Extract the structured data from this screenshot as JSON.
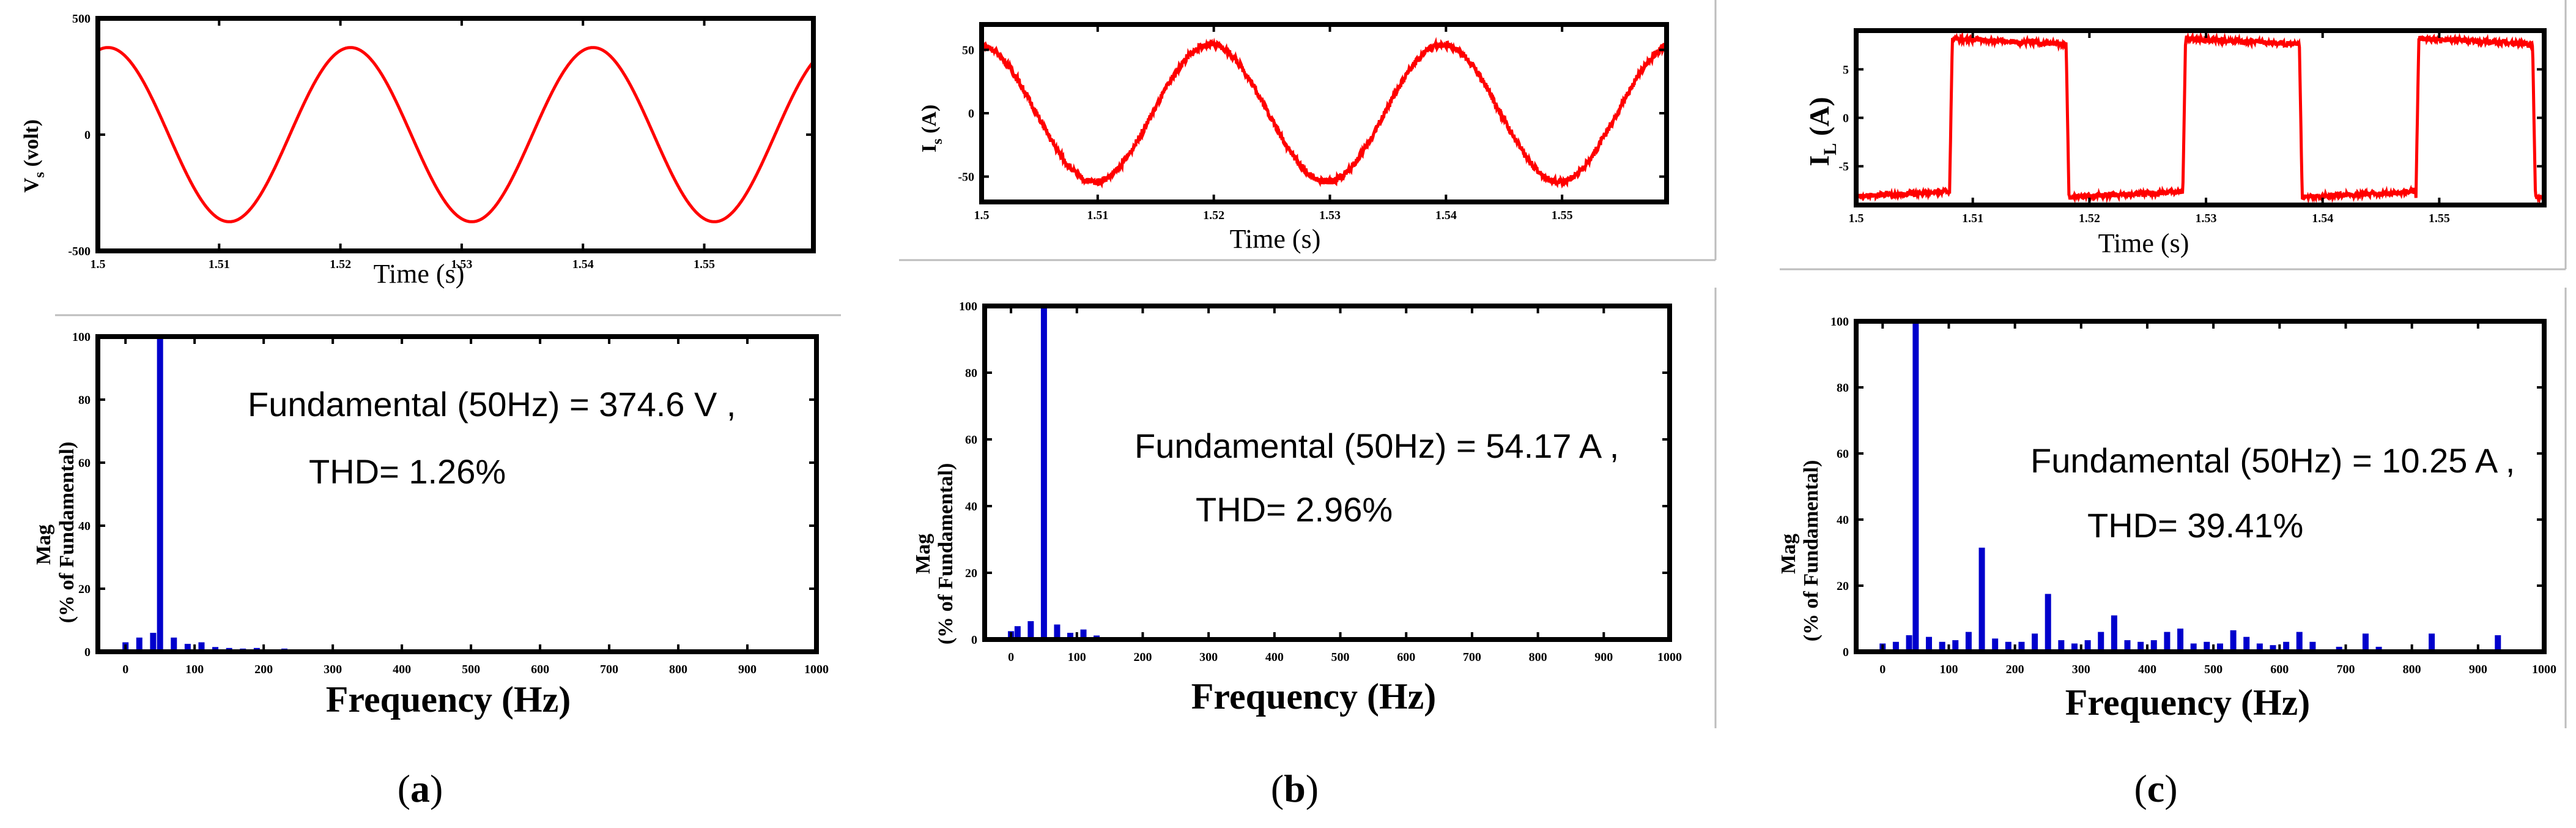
{
  "colors": {
    "waveform": "#ff0000",
    "spectrum_bar": "#0000cc",
    "axis": "#000000",
    "separator": "#bdbdbd"
  },
  "panels": [
    {
      "label": "(a)",
      "label_open": "(",
      "label_letter": "a",
      "label_close": ")"
    },
    {
      "label": "(b)",
      "label_open": "(",
      "label_letter": "b",
      "label_close": ")"
    },
    {
      "label": "(c)",
      "label_open": "(",
      "label_letter": "c",
      "label_close": ")"
    }
  ],
  "chart_data": [
    {
      "id": "a-time",
      "type": "line",
      "title": "",
      "xlabel": "Time (s)",
      "ylabel_main": "V",
      "ylabel_sub": "s",
      "ylabel_rest": " (volt)",
      "xlim": [
        1.5,
        1.559
      ],
      "ylim": [
        -500,
        500
      ],
      "xticks": [
        1.5,
        1.51,
        1.52,
        1.53,
        1.54,
        1.55
      ],
      "xtick_labels": [
        "1.5",
        "1.51",
        "1.52",
        "1.53",
        "1.54",
        "1.55"
      ],
      "yticks": [
        -500,
        0,
        500
      ],
      "ytick_labels": [
        "-500",
        "0",
        "500"
      ],
      "series": [
        {
          "name": "Vs",
          "waveform": "sine",
          "amplitude": 374.6,
          "frequency_hz": 50,
          "phase_deg": 75,
          "noise": 0
        }
      ]
    },
    {
      "id": "b-time",
      "type": "line",
      "title": "",
      "xlabel": "Time (s)",
      "ylabel_main": "I",
      "ylabel_sub": "s",
      "ylabel_rest": " (A)",
      "xlim": [
        1.5,
        1.559
      ],
      "ylim": [
        -70,
        70
      ],
      "xticks": [
        1.5,
        1.51,
        1.52,
        1.53,
        1.54,
        1.55
      ],
      "xtick_labels": [
        "1.5",
        "1.51",
        "1.52",
        "1.53",
        "1.54",
        "1.55"
      ],
      "yticks": [
        -50,
        0,
        50
      ],
      "ytick_labels": [
        "-50",
        "0",
        "50"
      ],
      "series": [
        {
          "name": "Is",
          "waveform": "sine",
          "amplitude": 54.17,
          "frequency_hz": 50,
          "phase_deg": 95,
          "noise": 2.5
        }
      ]
    },
    {
      "id": "c-time",
      "type": "line",
      "title": "",
      "xlabel": "Time (s)",
      "ylabel_main": "I",
      "ylabel_sub": "L",
      "ylabel_rest": " (A)",
      "xlim": [
        1.5,
        1.559
      ],
      "ylim": [
        -9,
        9
      ],
      "xticks": [
        1.5,
        1.51,
        1.52,
        1.53,
        1.54,
        1.55
      ],
      "xtick_labels": [
        "1.5",
        "1.51",
        "1.52",
        "1.53",
        "1.54",
        "1.55"
      ],
      "yticks": [
        -5,
        0,
        5
      ],
      "ytick_labels": [
        "-5",
        "0",
        "5"
      ],
      "series": [
        {
          "name": "IL",
          "waveform": "square",
          "amplitude": 8.2,
          "frequency_hz": 50,
          "first_rise_s": 1.508,
          "noise": 0.25
        }
      ]
    },
    {
      "id": "a-spectrum",
      "type": "bar",
      "xlabel": "Frequency (Hz)",
      "ylabel_line1": "Mag",
      "ylabel_line2": "(% of Fundamental)",
      "xlim": [
        -40,
        1000
      ],
      "ylim": [
        0,
        100
      ],
      "xticks": [
        0,
        100,
        200,
        300,
        400,
        500,
        600,
        700,
        800,
        900,
        1000
      ],
      "xtick_labels": [
        "0",
        "100",
        "200",
        "300",
        "400",
        "500",
        "600",
        "700",
        "800",
        "900",
        "1000"
      ],
      "yticks": [
        0,
        20,
        40,
        60,
        80,
        100
      ],
      "ytick_labels": [
        "0",
        "20",
        "40",
        "60",
        "80",
        "100"
      ],
      "annotation_line1": "Fundamental (50Hz) = 374.6 V ,",
      "annotation_line2": "THD= 1.26%",
      "bars": [
        {
          "f": 0,
          "mag": 3
        },
        {
          "f": 20,
          "mag": 4.5
        },
        {
          "f": 40,
          "mag": 6
        },
        {
          "f": 50,
          "mag": 100
        },
        {
          "f": 70,
          "mag": 4.5
        },
        {
          "f": 90,
          "mag": 2.5
        },
        {
          "f": 110,
          "mag": 3
        },
        {
          "f": 130,
          "mag": 1.5
        },
        {
          "f": 150,
          "mag": 1.2
        },
        {
          "f": 170,
          "mag": 1
        },
        {
          "f": 190,
          "mag": 1.2
        },
        {
          "f": 230,
          "mag": 1
        }
      ]
    },
    {
      "id": "b-spectrum",
      "type": "bar",
      "xlabel": "Frequency (Hz)",
      "ylabel_line1": "Mag",
      "ylabel_line2": "(% of Fundamental)",
      "xlim": [
        -40,
        1000
      ],
      "ylim": [
        0,
        100
      ],
      "xticks": [
        0,
        100,
        200,
        300,
        400,
        500,
        600,
        700,
        800,
        900,
        1000
      ],
      "xtick_labels": [
        "0",
        "100",
        "200",
        "300",
        "400",
        "500",
        "600",
        "700",
        "800",
        "900",
        "1000"
      ],
      "yticks": [
        0,
        20,
        40,
        60,
        80,
        100
      ],
      "ytick_labels": [
        "0",
        "20",
        "40",
        "60",
        "80",
        "100"
      ],
      "annotation_line1": "Fundamental (50Hz) = 54.17 A ,",
      "annotation_line2": "THD= 2.96%",
      "bars": [
        {
          "f": 0,
          "mag": 2.5
        },
        {
          "f": 10,
          "mag": 4
        },
        {
          "f": 30,
          "mag": 5.5
        },
        {
          "f": 50,
          "mag": 100
        },
        {
          "f": 70,
          "mag": 4.5
        },
        {
          "f": 90,
          "mag": 2
        },
        {
          "f": 110,
          "mag": 3
        },
        {
          "f": 130,
          "mag": 1.2
        }
      ]
    },
    {
      "id": "c-spectrum",
      "type": "bar",
      "xlabel": "Frequency (Hz)",
      "ylabel_line1": "Mag",
      "ylabel_line2": "(% of Fundamental)",
      "xlim": [
        -40,
        1000
      ],
      "ylim": [
        0,
        100
      ],
      "xticks": [
        0,
        100,
        200,
        300,
        400,
        500,
        600,
        700,
        800,
        900,
        1000
      ],
      "xtick_labels": [
        "0",
        "100",
        "200",
        "300",
        "400",
        "500",
        "600",
        "700",
        "800",
        "900",
        "1000"
      ],
      "yticks": [
        0,
        20,
        40,
        60,
        80,
        100
      ],
      "ytick_labels": [
        "0",
        "20",
        "40",
        "60",
        "80",
        "100"
      ],
      "annotation_line1": "Fundamental (50Hz) = 10.25 A ,",
      "annotation_line2": "THD= 39.41%",
      "bars": [
        {
          "f": 0,
          "mag": 2.5
        },
        {
          "f": 20,
          "mag": 3
        },
        {
          "f": 40,
          "mag": 5
        },
        {
          "f": 50,
          "mag": 100
        },
        {
          "f": 70,
          "mag": 4.5
        },
        {
          "f": 90,
          "mag": 3
        },
        {
          "f": 110,
          "mag": 3.5
        },
        {
          "f": 130,
          "mag": 6
        },
        {
          "f": 150,
          "mag": 31.5
        },
        {
          "f": 170,
          "mag": 4
        },
        {
          "f": 190,
          "mag": 3
        },
        {
          "f": 210,
          "mag": 3
        },
        {
          "f": 230,
          "mag": 5.5
        },
        {
          "f": 250,
          "mag": 17.5
        },
        {
          "f": 270,
          "mag": 3.5
        },
        {
          "f": 290,
          "mag": 2.5
        },
        {
          "f": 310,
          "mag": 3.5
        },
        {
          "f": 330,
          "mag": 6
        },
        {
          "f": 350,
          "mag": 11
        },
        {
          "f": 370,
          "mag": 3.5
        },
        {
          "f": 390,
          "mag": 3
        },
        {
          "f": 410,
          "mag": 3.5
        },
        {
          "f": 430,
          "mag": 6
        },
        {
          "f": 450,
          "mag": 7
        },
        {
          "f": 470,
          "mag": 2.5
        },
        {
          "f": 490,
          "mag": 3
        },
        {
          "f": 510,
          "mag": 2.5
        },
        {
          "f": 530,
          "mag": 6.5
        },
        {
          "f": 550,
          "mag": 4.5
        },
        {
          "f": 570,
          "mag": 2.5
        },
        {
          "f": 590,
          "mag": 2
        },
        {
          "f": 610,
          "mag": 3
        },
        {
          "f": 630,
          "mag": 6
        },
        {
          "f": 650,
          "mag": 3
        },
        {
          "f": 690,
          "mag": 1.5
        },
        {
          "f": 730,
          "mag": 5.5
        },
        {
          "f": 750,
          "mag": 1.5
        },
        {
          "f": 830,
          "mag": 5.5
        },
        {
          "f": 930,
          "mag": 5
        }
      ]
    }
  ]
}
